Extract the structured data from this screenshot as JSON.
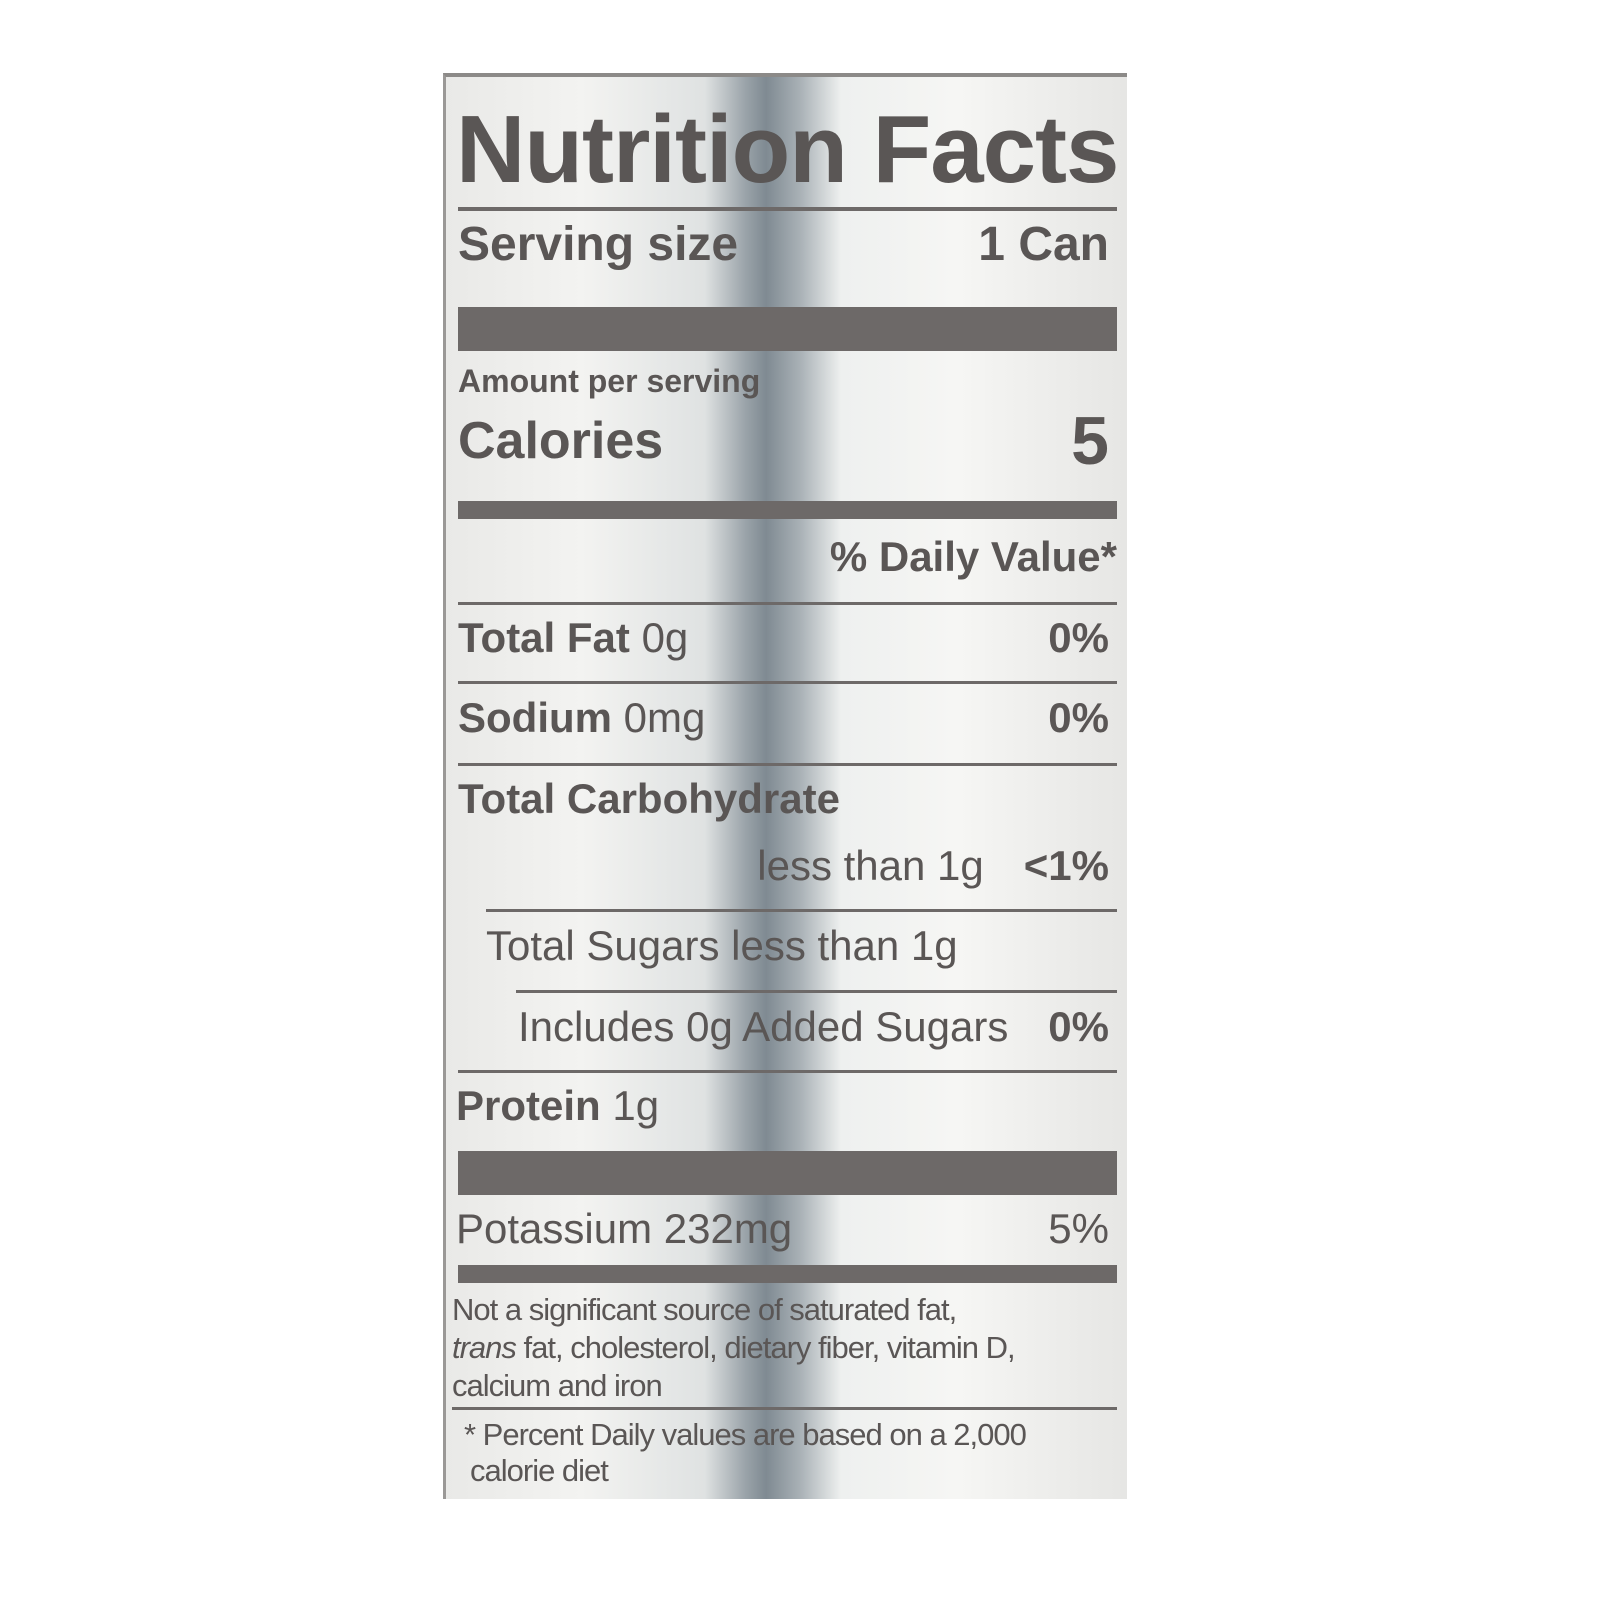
{
  "title": "Nutrition Facts",
  "serving": {
    "label": "Serving size",
    "value": "1 Can"
  },
  "amount_per_serving": "Amount per serving",
  "calories": {
    "label": "Calories",
    "value": "5"
  },
  "daily_value_header": "% Daily Value*",
  "nutrients": [
    {
      "name": "Total Fat",
      "amount": "0g",
      "dv": "0%"
    },
    {
      "name": "Sodium",
      "amount": "0mg",
      "dv": "0%"
    },
    {
      "name": "Total Carbohydrate",
      "amount": "less than 1g",
      "dv": "<1%"
    },
    {
      "name": "Total Sugars less than 1g"
    },
    {
      "name": "Includes 0g Added Sugars",
      "dv": "0%"
    },
    {
      "name": "Protein",
      "amount": "1g"
    },
    {
      "name": "Potassium 232mg",
      "dv": "5%"
    }
  ],
  "footnote": {
    "line1": "Not a significant source of saturated fat,",
    "trans": "trans",
    "line2": " fat, cholesterol, dietary fiber, vitamin D,",
    "line3": "calcium and iron"
  },
  "footer": {
    "line1": "* Percent Daily values are based on a 2,000",
    "line2": "calorie diet"
  },
  "colors": {
    "ink": "#5a5655",
    "bars": "#6d6968"
  }
}
